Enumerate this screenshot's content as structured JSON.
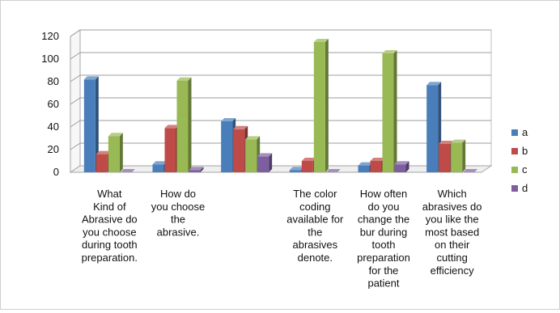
{
  "chart_data": {
    "type": "bar",
    "title": "",
    "xlabel": "",
    "ylabel": "",
    "ylim": [
      0,
      120
    ],
    "yticks": [
      0,
      20,
      40,
      60,
      80,
      100,
      120
    ],
    "grid": true,
    "legend_position": "right",
    "style": "3d-clustered-column",
    "categories": [
      [
        "What",
        "Kind of",
        "Abrasive do",
        "you choose",
        "during tooth",
        "preparation."
      ],
      [
        "How do",
        "you choose",
        "the",
        "abrasive."
      ],
      [],
      [
        "The color",
        "coding",
        "available for",
        "the",
        "abrasives",
        "denote."
      ],
      [
        "How often",
        "do you",
        "change the",
        "bur during",
        "tooth",
        "preparation",
        "for the",
        "patient"
      ],
      [
        "Which",
        "abrasives do",
        "you like the",
        "most based",
        "on their",
        "cutting",
        "efficiency"
      ]
    ],
    "series": [
      {
        "name": "a",
        "color": "#4a7ebb",
        "values": [
          82,
          7,
          45,
          2,
          6,
          77
        ]
      },
      {
        "name": "b",
        "color": "#be4b48",
        "values": [
          16,
          39,
          38,
          10,
          10,
          25
        ]
      },
      {
        "name": "c",
        "color": "#98b954",
        "values": [
          32,
          81,
          29,
          115,
          105,
          26
        ]
      },
      {
        "name": "d",
        "color": "#7d5fa0",
        "values": [
          0,
          2,
          14,
          0,
          7,
          0
        ]
      }
    ]
  }
}
